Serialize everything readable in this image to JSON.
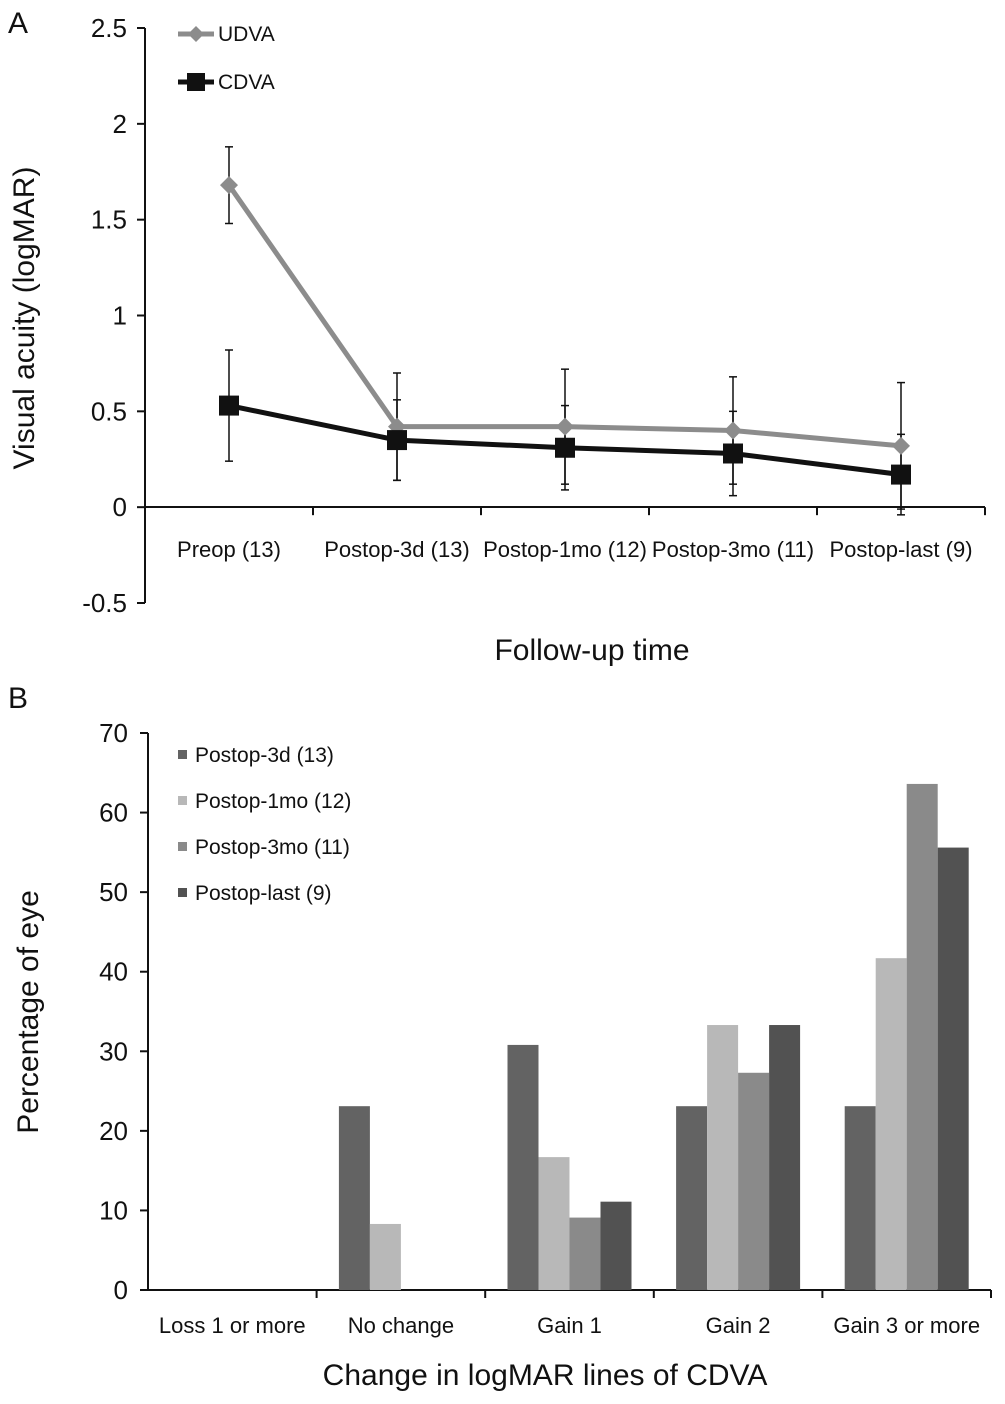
{
  "panel_labels": [
    "A",
    "B"
  ],
  "chart_data": [
    {
      "type": "line",
      "panel": "A",
      "categories": [
        "Preop (13)",
        "Postop-3d (13)",
        "Postop-1mo (12)",
        "Postop-3mo (11)",
        "Postop-last (9)"
      ],
      "series": [
        {
          "name": "UDVA",
          "values": [
            1.68,
            0.42,
            0.42,
            0.4,
            0.32
          ],
          "error": [
            0.2,
            0.28,
            0.3,
            0.28,
            0.33
          ],
          "color": "#8c8c8c",
          "marker": "diamond"
        },
        {
          "name": "CDVA",
          "values": [
            0.53,
            0.35,
            0.31,
            0.28,
            0.17
          ],
          "error": [
            0.29,
            0.21,
            0.22,
            0.22,
            0.21
          ],
          "color": "#111111",
          "marker": "square"
        }
      ],
      "ylabel": "Visual acuity (logMAR)",
      "xlabel": "Follow-up time",
      "ylim": [
        -0.5,
        2.5
      ],
      "yticks": [
        "2.5",
        "2",
        "1.5",
        "1",
        "0.5",
        "0",
        "-0.5"
      ],
      "ytick_values": [
        2.5,
        2,
        1.5,
        1,
        0.5,
        0,
        -0.5
      ],
      "legend_position": "top-left",
      "grid": false
    },
    {
      "type": "bar",
      "panel": "B",
      "categories": [
        "Loss 1 or more",
        "No change",
        "Gain 1",
        "Gain 2",
        "Gain 3 or more"
      ],
      "series": [
        {
          "name": "Postop-3d (13)",
          "values": [
            0,
            23.1,
            30.8,
            23.1,
            23.1
          ],
          "color": "#636363"
        },
        {
          "name": "Postop-1mo (12)",
          "values": [
            0,
            8.3,
            16.7,
            33.3,
            41.7
          ],
          "color": "#b8b8b8"
        },
        {
          "name": "Postop-3mo (11)",
          "values": [
            0,
            0,
            9.1,
            27.3,
            63.6
          ],
          "color": "#8a8a8a"
        },
        {
          "name": "Postop-last (9)",
          "values": [
            0,
            0,
            11.1,
            33.3,
            55.6
          ],
          "color": "#525252"
        }
      ],
      "ylabel": "Percentage of eye",
      "xlabel": "Change in logMAR lines of CDVA",
      "ylim": [
        0,
        70
      ],
      "yticks": [
        "70",
        "60",
        "50",
        "40",
        "30",
        "20",
        "10",
        "0"
      ],
      "ytick_values": [
        70,
        60,
        50,
        40,
        30,
        20,
        10,
        0
      ],
      "legend_position": "top-left",
      "grid": false
    }
  ]
}
